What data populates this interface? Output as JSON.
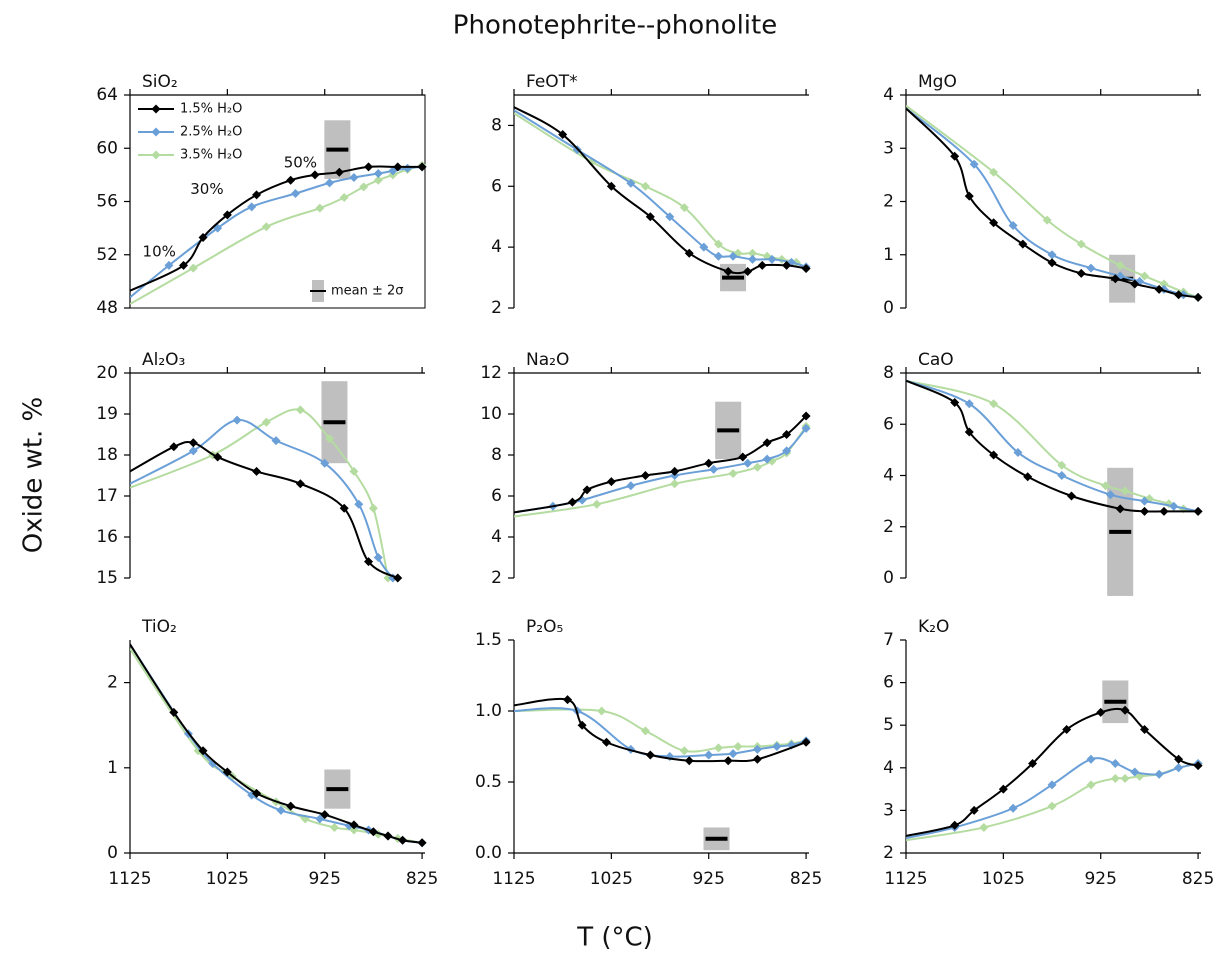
{
  "figure": {
    "title": "Phonotephrite--phonolite",
    "ylabel": "Oxide wt. %",
    "xlabel": "T (°C)"
  },
  "chart_data": [
    {
      "type": "line",
      "title": "SiO₂",
      "xlim": [
        1125,
        822
      ],
      "xticks": [
        1125,
        1025,
        925,
        825
      ],
      "ylim": [
        48,
        64
      ],
      "yticks": [
        48,
        52,
        56,
        60,
        64
      ],
      "series": [
        {
          "name": "1.5% H₂O",
          "color": "#000000",
          "x": [
            1125,
            1070,
            1050,
            1025,
            995,
            960,
            935,
            910,
            880,
            850,
            825
          ],
          "values": [
            49.3,
            51.2,
            53.3,
            55.0,
            56.5,
            57.6,
            58.0,
            58.2,
            58.6,
            58.6,
            58.6
          ]
        },
        {
          "name": "2.5% H₂O",
          "color": "#6a9fd8",
          "x": [
            1125,
            1085,
            1035,
            1000,
            955,
            920,
            895,
            870,
            855,
            840,
            825
          ],
          "values": [
            48.8,
            51.2,
            54.0,
            55.6,
            56.6,
            57.4,
            57.8,
            58.1,
            58.3,
            58.5,
            58.6
          ]
        },
        {
          "name": "3.5% H₂O",
          "color": "#b5dca0",
          "x": [
            1125,
            1060,
            985,
            930,
            905,
            885,
            870,
            855,
            840,
            825
          ],
          "values": [
            48.3,
            51.0,
            54.1,
            55.5,
            56.3,
            57.1,
            57.6,
            58.0,
            58.4,
            58.7
          ]
        }
      ],
      "box": {
        "x": 912,
        "mean": 59.9,
        "two_sigma": 2.2
      },
      "box_label": "mean ± 2σ",
      "annotations": [
        {
          "text": "10%",
          "x": 1095,
          "y": 52.2
        },
        {
          "text": "30%",
          "x": 1046,
          "y": 56.9
        },
        {
          "text": "50%",
          "x": 950,
          "y": 58.9
        }
      ]
    },
    {
      "type": "line",
      "title": "FeOT*",
      "xlim": [
        1125,
        822
      ],
      "xticks": [
        1125,
        1025,
        925,
        825
      ],
      "ylim": [
        2,
        9
      ],
      "yticks": [
        2,
        4,
        6,
        8
      ],
      "series": [
        {
          "color": "#000000",
          "x": [
            1125,
            1075,
            1025,
            985,
            945,
            905,
            885,
            870,
            845,
            825
          ],
          "values": [
            8.6,
            7.7,
            6.0,
            5.0,
            3.8,
            3.2,
            3.2,
            3.4,
            3.4,
            3.3
          ]
        },
        {
          "color": "#6a9fd8",
          "x": [
            1125,
            1060,
            1005,
            965,
            930,
            915,
            900,
            880,
            860,
            840,
            825
          ],
          "values": [
            8.5,
            7.2,
            6.1,
            5.0,
            4.0,
            3.7,
            3.7,
            3.6,
            3.6,
            3.5,
            3.35
          ]
        },
        {
          "color": "#b5dca0",
          "x": [
            1125,
            1045,
            990,
            950,
            915,
            895,
            880,
            865,
            850,
            835,
            825
          ],
          "values": [
            8.4,
            6.8,
            6.0,
            5.3,
            4.1,
            3.8,
            3.8,
            3.7,
            3.6,
            3.5,
            3.3
          ]
        }
      ],
      "box": {
        "x": 900,
        "mean": 3.0,
        "two_sigma": 0.45
      }
    },
    {
      "type": "line",
      "title": "MgO",
      "xlim": [
        1125,
        822
      ],
      "xticks": [
        1125,
        1025,
        925,
        825
      ],
      "ylim": [
        0,
        4
      ],
      "yticks": [
        0,
        1,
        2,
        3,
        4
      ],
      "series": [
        {
          "color": "#000000",
          "x": [
            1125,
            1075,
            1060,
            1035,
            1005,
            975,
            945,
            910,
            890,
            865,
            845,
            825
          ],
          "values": [
            3.75,
            2.85,
            2.1,
            1.6,
            1.2,
            0.85,
            0.65,
            0.55,
            0.45,
            0.35,
            0.25,
            0.2
          ]
        },
        {
          "color": "#6a9fd8",
          "x": [
            1125,
            1055,
            1015,
            975,
            935,
            905,
            885,
            860,
            840,
            825
          ],
          "values": [
            3.75,
            2.7,
            1.55,
            1.0,
            0.75,
            0.6,
            0.5,
            0.35,
            0.25,
            0.2
          ]
        },
        {
          "color": "#b5dca0",
          "x": [
            1125,
            1035,
            980,
            945,
            905,
            880,
            860,
            840,
            825
          ],
          "values": [
            3.8,
            2.55,
            1.65,
            1.2,
            0.8,
            0.6,
            0.45,
            0.3,
            0.2
          ]
        }
      ],
      "box": {
        "x": 903,
        "mean": 0.55,
        "two_sigma": 0.45
      }
    },
    {
      "type": "line",
      "title": "Al₂O₃",
      "xlim": [
        1125,
        822
      ],
      "xticks": [
        1125,
        1025,
        925,
        825
      ],
      "ylim": [
        15,
        20
      ],
      "yticks": [
        15,
        16,
        17,
        18,
        19,
        20
      ],
      "series": [
        {
          "color": "#000000",
          "x": [
            1125,
            1080,
            1060,
            1035,
            995,
            950,
            905,
            880,
            850
          ],
          "values": [
            17.6,
            18.2,
            18.3,
            17.95,
            17.6,
            17.3,
            16.7,
            15.4,
            15.0
          ]
        },
        {
          "color": "#6a9fd8",
          "x": [
            1125,
            1060,
            1015,
            975,
            925,
            890,
            870,
            855
          ],
          "values": [
            17.3,
            18.1,
            18.85,
            18.35,
            17.8,
            16.8,
            15.5,
            15.0
          ]
        },
        {
          "color": "#b5dca0",
          "x": [
            1125,
            1040,
            985,
            950,
            920,
            895,
            875,
            860
          ],
          "values": [
            17.2,
            18.0,
            18.8,
            19.1,
            18.4,
            17.6,
            16.7,
            15.0
          ]
        }
      ],
      "box": {
        "x": 915,
        "mean": 18.8,
        "two_sigma": 1.0
      }
    },
    {
      "type": "line",
      "title": "Na₂O",
      "xlim": [
        1125,
        822
      ],
      "xticks": [
        1125,
        1025,
        925,
        825
      ],
      "ylim": [
        2,
        12
      ],
      "yticks": [
        2,
        4,
        6,
        8,
        10,
        12
      ],
      "series": [
        {
          "color": "#000000",
          "x": [
            1125,
            1065,
            1050,
            1025,
            990,
            960,
            925,
            890,
            865,
            845,
            825
          ],
          "values": [
            5.2,
            5.7,
            6.3,
            6.7,
            7.0,
            7.2,
            7.6,
            7.9,
            8.6,
            9.0,
            9.9
          ]
        },
        {
          "color": "#6a9fd8",
          "x": [
            1125,
            1085,
            1055,
            1005,
            960,
            920,
            885,
            865,
            845,
            825
          ],
          "values": [
            5.2,
            5.5,
            5.8,
            6.5,
            7.0,
            7.3,
            7.6,
            7.8,
            8.2,
            9.3
          ]
        },
        {
          "color": "#b5dca0",
          "x": [
            1125,
            1040,
            960,
            900,
            875,
            860,
            845,
            825
          ],
          "values": [
            5.0,
            5.6,
            6.6,
            7.1,
            7.4,
            7.7,
            8.1,
            9.4
          ]
        }
      ],
      "box": {
        "x": 905,
        "mean": 9.2,
        "two_sigma": 1.4
      }
    },
    {
      "type": "line",
      "title": "CaO",
      "xlim": [
        1125,
        822
      ],
      "xticks": [
        1125,
        1025,
        925,
        825
      ],
      "ylim": [
        0,
        8
      ],
      "yticks": [
        0,
        2,
        4,
        6,
        8
      ],
      "series": [
        {
          "color": "#000000",
          "x": [
            1125,
            1075,
            1060,
            1035,
            1000,
            955,
            905,
            880,
            860,
            825
          ],
          "values": [
            7.7,
            6.85,
            5.7,
            4.8,
            3.95,
            3.2,
            2.7,
            2.6,
            2.6,
            2.6
          ]
        },
        {
          "color": "#6a9fd8",
          "x": [
            1125,
            1060,
            1010,
            965,
            915,
            880,
            850,
            825
          ],
          "values": [
            7.7,
            6.8,
            4.9,
            4.0,
            3.25,
            3.0,
            2.8,
            2.6
          ]
        },
        {
          "color": "#b5dca0",
          "x": [
            1125,
            1035,
            965,
            920,
            900,
            875,
            855,
            840,
            825
          ],
          "values": [
            7.7,
            6.8,
            4.4,
            3.6,
            3.4,
            3.1,
            2.9,
            2.7,
            2.6
          ]
        }
      ],
      "box": {
        "x": 905,
        "mean": 1.8,
        "two_sigma": 2.5
      }
    },
    {
      "type": "line",
      "title": "TiO₂",
      "xlim": [
        1125,
        822
      ],
      "xticks": [
        1125,
        1025,
        925,
        825
      ],
      "ylim": [
        0,
        2.5
      ],
      "yticks": [
        0,
        1,
        2
      ],
      "series": [
        {
          "color": "#000000",
          "x": [
            1125,
            1080,
            1050,
            1025,
            995,
            960,
            925,
            895,
            875,
            860,
            845,
            825
          ],
          "values": [
            2.45,
            1.65,
            1.2,
            0.95,
            0.7,
            0.55,
            0.45,
            0.33,
            0.25,
            0.2,
            0.15,
            0.12
          ]
        },
        {
          "color": "#6a9fd8",
          "x": [
            1125,
            1065,
            1040,
            1000,
            970,
            930,
            900,
            880,
            860,
            845,
            825
          ],
          "values": [
            2.45,
            1.4,
            1.05,
            0.68,
            0.5,
            0.4,
            0.32,
            0.27,
            0.2,
            0.15,
            0.12
          ]
        },
        {
          "color": "#b5dca0",
          "x": [
            1125,
            1055,
            1020,
            975,
            945,
            915,
            895,
            870,
            850,
            825
          ],
          "values": [
            2.4,
            1.2,
            0.9,
            0.6,
            0.4,
            0.3,
            0.27,
            0.22,
            0.17,
            0.12
          ]
        }
      ],
      "box": {
        "x": 912,
        "mean": 0.75,
        "two_sigma": 0.23
      }
    },
    {
      "type": "line",
      "title": "P₂O₅",
      "xlim": [
        1125,
        822
      ],
      "xticks": [
        1125,
        1025,
        925,
        825
      ],
      "ylim": [
        0,
        1.5
      ],
      "yticks": [
        {
          "value": 0,
          "label": "0.0"
        },
        0.5,
        {
          "value": 1,
          "label": "1.0"
        },
        1.5
      ],
      "series": [
        {
          "color": "#000000",
          "x": [
            1125,
            1070,
            1055,
            1030,
            985,
            945,
            905,
            875,
            825
          ],
          "values": [
            1.04,
            1.08,
            0.9,
            0.78,
            0.69,
            0.65,
            0.65,
            0.66,
            0.78
          ]
        },
        {
          "color": "#6a9fd8",
          "x": [
            1125,
            1060,
            1005,
            965,
            925,
            900,
            875,
            855,
            840,
            825
          ],
          "values": [
            1.0,
            1.0,
            0.73,
            0.68,
            0.69,
            0.7,
            0.73,
            0.75,
            0.76,
            0.79
          ]
        },
        {
          "color": "#b5dca0",
          "x": [
            1125,
            1035,
            990,
            950,
            915,
            895,
            875,
            855,
            840,
            825
          ],
          "values": [
            1.0,
            1.0,
            0.86,
            0.72,
            0.74,
            0.75,
            0.75,
            0.76,
            0.77,
            0.79
          ]
        }
      ],
      "box": {
        "x": 917,
        "mean": 0.1,
        "two_sigma": 0.08
      }
    },
    {
      "type": "line",
      "title": "K₂O",
      "xlim": [
        1125,
        822
      ],
      "xticks": [
        1125,
        1025,
        925,
        825
      ],
      "ylim": [
        2,
        7
      ],
      "yticks": [
        2,
        3,
        4,
        5,
        6,
        7
      ],
      "series": [
        {
          "color": "#000000",
          "x": [
            1125,
            1075,
            1055,
            1025,
            995,
            960,
            925,
            900,
            880,
            845,
            825
          ],
          "values": [
            2.4,
            2.65,
            3.0,
            3.5,
            4.1,
            4.9,
            5.3,
            5.35,
            4.9,
            4.2,
            4.05
          ]
        },
        {
          "color": "#6a9fd8",
          "x": [
            1125,
            1075,
            1015,
            975,
            935,
            910,
            890,
            865,
            845,
            825
          ],
          "values": [
            2.35,
            2.6,
            3.05,
            3.6,
            4.2,
            4.1,
            3.9,
            3.85,
            4.0,
            4.1
          ]
        },
        {
          "color": "#b5dca0",
          "x": [
            1125,
            1045,
            975,
            935,
            910,
            900,
            885,
            865,
            845,
            825
          ],
          "values": [
            2.3,
            2.6,
            3.1,
            3.6,
            3.75,
            3.75,
            3.8,
            3.85,
            4.0,
            4.1
          ]
        }
      ],
      "box": {
        "x": 910,
        "mean": 5.55,
        "two_sigma": 0.5
      }
    }
  ]
}
